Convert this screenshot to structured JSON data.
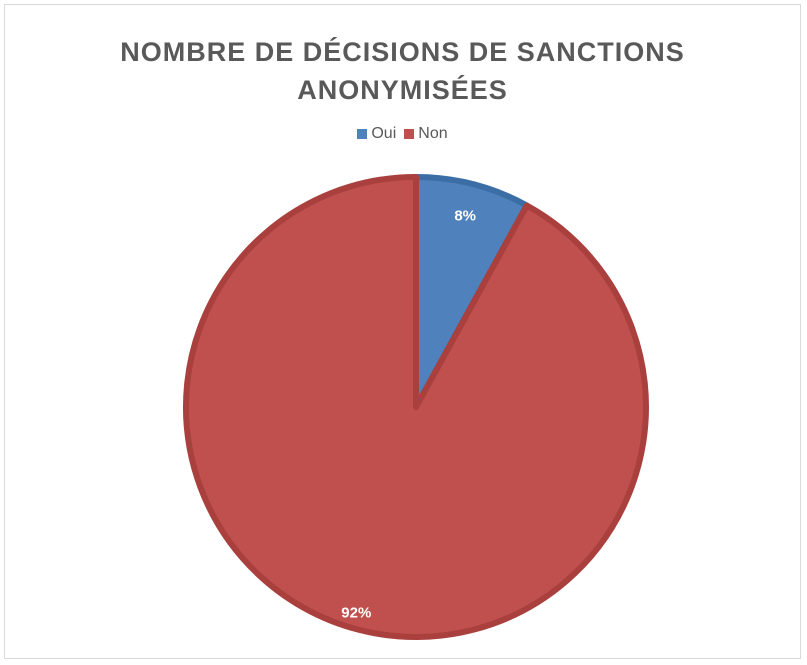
{
  "chart_data": {
    "type": "pie",
    "title_lines": [
      "NOMBRE DE DÉCISIONS DE SANCTIONS",
      "ANONYMISÉES"
    ],
    "legend_position": "top",
    "slices": [
      {
        "name": "Oui",
        "value": 8,
        "label": "8%",
        "color": "#4f81bd",
        "stroke": "#3b6ea5"
      },
      {
        "name": "Non",
        "value": 92,
        "label": "92%",
        "color": "#c0504d",
        "stroke": "#a9403d"
      }
    ]
  }
}
